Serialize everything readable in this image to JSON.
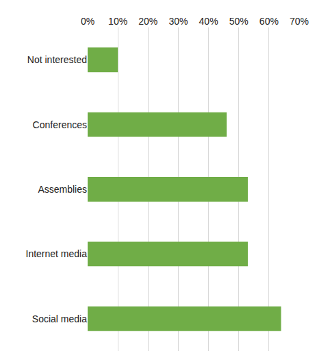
{
  "chart_data": {
    "type": "bar",
    "orientation": "horizontal",
    "categories": [
      "Not interested",
      "Conferences",
      "Assemblies",
      "Internet media",
      "Social media"
    ],
    "values": [
      10,
      46,
      53,
      53,
      64
    ],
    "color": "#70ad47",
    "xlim": [
      0,
      70
    ],
    "xticks": [
      {
        "value": 0,
        "label": "0%"
      },
      {
        "value": 10,
        "label": "10%"
      },
      {
        "value": 20,
        "label": "20%"
      },
      {
        "value": 30,
        "label": "30%"
      },
      {
        "value": 40,
        "label": "40%"
      },
      {
        "value": 50,
        "label": "50%"
      },
      {
        "value": 60,
        "label": "60%"
      },
      {
        "value": 70,
        "label": "70%"
      }
    ],
    "grid": true
  }
}
